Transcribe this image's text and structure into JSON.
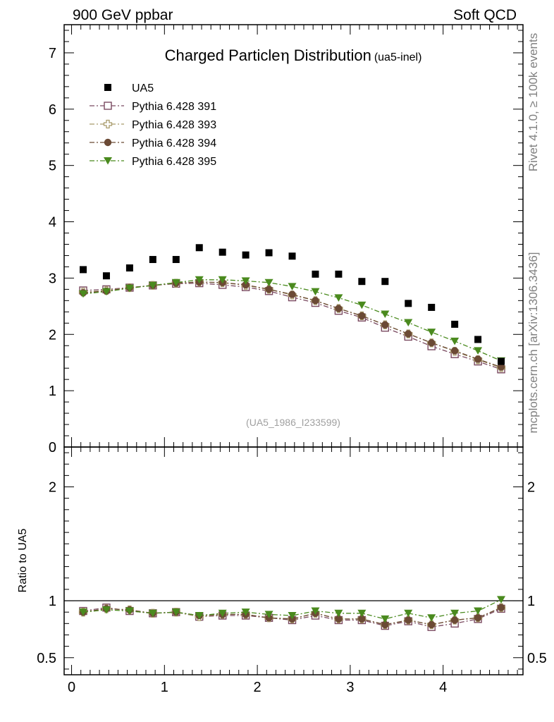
{
  "header": {
    "left": "900 GeV ppbar",
    "right": "Soft QCD"
  },
  "side_labels": {
    "rivet": "Rivet 4.1.0, ≥ 100k events",
    "mcplots": "mcplots.cern.ch [arXiv:1306.3436]"
  },
  "chart_data": [
    {
      "type": "scatter",
      "title": "Charged Particleη Distribution",
      "title_main": "Charged Particle",
      "title_symbol": "η",
      "title_rest": " Distribution",
      "title_sub": "(ua5-inel)",
      "watermark": "(UA5_1986_I233599)",
      "xlabel": "",
      "ylabel": "",
      "xlim": [
        -0.08,
        4.86
      ],
      "ylim": [
        0,
        7.5
      ],
      "yticks": [
        0,
        1,
        2,
        3,
        4,
        5,
        6,
        7
      ],
      "yticklabels": [
        "0",
        "1",
        "2",
        "3",
        "4",
        "5",
        "6",
        "7"
      ],
      "x": [
        0.125,
        0.375,
        0.625,
        0.875,
        1.125,
        1.375,
        1.625,
        1.875,
        2.125,
        2.375,
        2.625,
        2.875,
        3.125,
        3.375,
        3.625,
        3.875,
        4.125,
        4.375,
        4.625
      ],
      "series": [
        {
          "name": "UA5",
          "marker": "square-filled",
          "color": "#000000",
          "line": false,
          "values": [
            3.15,
            3.04,
            3.18,
            3.33,
            3.33,
            3.54,
            3.46,
            3.41,
            3.45,
            3.39,
            3.07,
            3.07,
            2.94,
            2.94,
            2.55,
            2.48,
            2.18,
            1.91,
            1.52
          ]
        },
        {
          "name": "Pythia 6.428 391",
          "marker": "square-open",
          "color": "#7a4a60",
          "line": true,
          "values": [
            2.78,
            2.8,
            2.83,
            2.87,
            2.9,
            2.91,
            2.88,
            2.84,
            2.77,
            2.66,
            2.56,
            2.42,
            2.3,
            2.12,
            1.96,
            1.79,
            1.65,
            1.52,
            1.38
          ]
        },
        {
          "name": "Pythia 6.428 393",
          "marker": "cross-open",
          "color": "#a89a6a",
          "line": true,
          "values": [
            2.75,
            2.78,
            2.83,
            2.87,
            2.91,
            2.93,
            2.92,
            2.87,
            2.8,
            2.7,
            2.6,
            2.46,
            2.33,
            2.17,
            2.01,
            1.85,
            1.7,
            1.55,
            1.41
          ]
        },
        {
          "name": "Pythia 6.428 394",
          "marker": "circle-filled",
          "color": "#6b4a35",
          "line": true,
          "values": [
            2.74,
            2.77,
            2.83,
            2.87,
            2.91,
            2.93,
            2.92,
            2.88,
            2.8,
            2.71,
            2.6,
            2.46,
            2.33,
            2.17,
            2.01,
            1.85,
            1.71,
            1.56,
            1.42
          ]
        },
        {
          "name": "Pythia 6.428 395",
          "marker": "triangle-down-filled",
          "color": "#4a8a1e",
          "line": true,
          "values": [
            2.72,
            2.76,
            2.82,
            2.87,
            2.92,
            2.97,
            2.97,
            2.95,
            2.92,
            2.85,
            2.76,
            2.65,
            2.52,
            2.36,
            2.21,
            2.04,
            1.88,
            1.71,
            1.53
          ]
        }
      ]
    },
    {
      "type": "scatter",
      "title": "",
      "xlabel": "",
      "ylabel": "Ratio to UA5",
      "xlim": [
        -0.08,
        4.86
      ],
      "ylim": [
        0.35,
        2.35
      ],
      "xticks": [
        0,
        1,
        2,
        3,
        4
      ],
      "xticklabels": [
        "0",
        "1",
        "2",
        "3",
        "4"
      ],
      "yticks": [
        0.5,
        1,
        2
      ],
      "yticklabels": [
        "0.5",
        "1",
        "2"
      ],
      "reference_line": 1,
      "x": [
        0.125,
        0.375,
        0.625,
        0.875,
        1.125,
        1.375,
        1.625,
        1.875,
        2.125,
        2.375,
        2.625,
        2.875,
        3.125,
        3.375,
        3.625,
        3.875,
        4.125,
        4.375,
        4.625
      ],
      "series": [
        {
          "name": "Pythia 6.428 391",
          "marker": "square-open",
          "color": "#7a4a60",
          "values": [
            0.91,
            0.94,
            0.91,
            0.89,
            0.9,
            0.86,
            0.87,
            0.87,
            0.85,
            0.83,
            0.87,
            0.83,
            0.83,
            0.78,
            0.82,
            0.77,
            0.8,
            0.84,
            0.93
          ]
        },
        {
          "name": "Pythia 6.428 393",
          "marker": "cross-open",
          "color": "#a89a6a",
          "values": [
            0.9,
            0.93,
            0.92,
            0.89,
            0.9,
            0.86,
            0.88,
            0.88,
            0.85,
            0.84,
            0.89,
            0.84,
            0.84,
            0.79,
            0.83,
            0.79,
            0.83,
            0.85,
            0.94
          ]
        },
        {
          "name": "Pythia 6.428 394",
          "marker": "circle-filled",
          "color": "#6b4a35",
          "values": [
            0.9,
            0.93,
            0.92,
            0.89,
            0.9,
            0.87,
            0.88,
            0.88,
            0.85,
            0.84,
            0.89,
            0.84,
            0.84,
            0.79,
            0.83,
            0.79,
            0.83,
            0.85,
            0.94
          ]
        },
        {
          "name": "Pythia 6.428 395",
          "marker": "triangle-down-filled",
          "color": "#4a8a1e",
          "values": [
            0.9,
            0.92,
            0.91,
            0.89,
            0.9,
            0.87,
            0.89,
            0.9,
            0.88,
            0.87,
            0.91,
            0.89,
            0.89,
            0.84,
            0.89,
            0.85,
            0.89,
            0.91,
            1.01
          ]
        }
      ]
    }
  ]
}
